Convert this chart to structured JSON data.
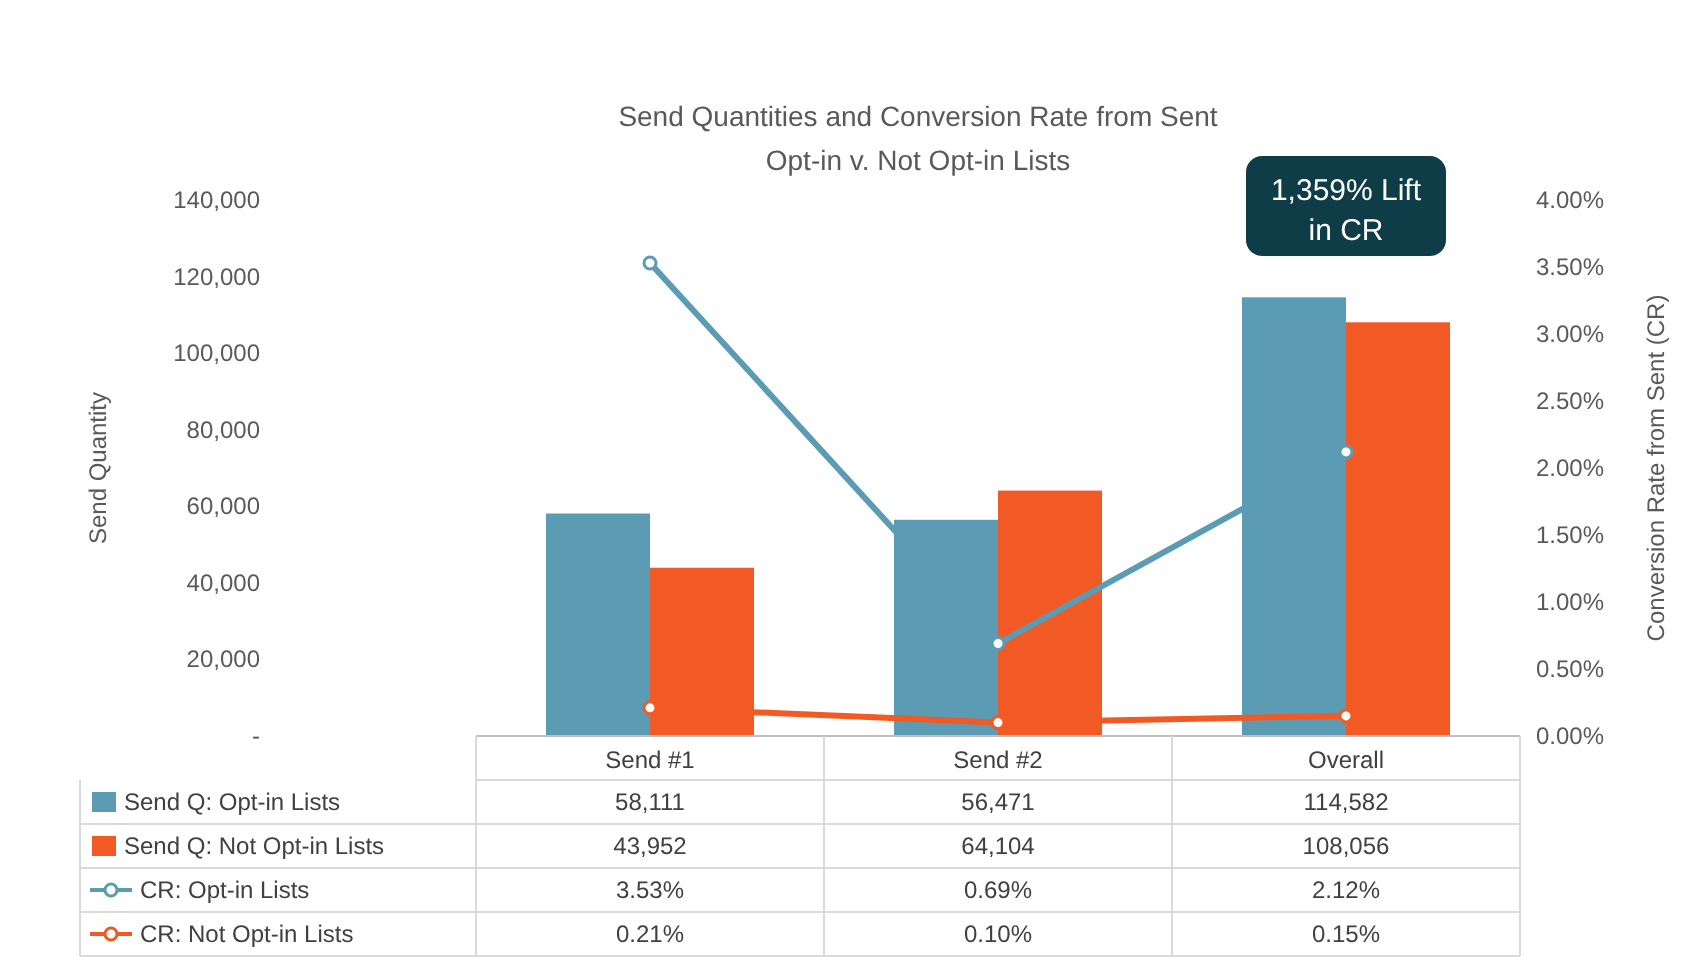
{
  "chart_data": {
    "type": "bar",
    "title": "Send Quantities and Conversion Rate from Sent",
    "subtitle": "Opt-in v. Not Opt-in Lists",
    "ylabel": "Send Quantity",
    "y2label": "Conversion Rate from Sent (CR)",
    "categories": [
      "Send #1",
      "Send #2",
      "Overall"
    ],
    "series": [
      {
        "name": "Send Q: Opt-in Lists",
        "color": "#5b9bb3",
        "values": [
          58111,
          56471,
          114582
        ],
        "value_labels": [
          "58,111",
          "56,471",
          "114,582"
        ]
      },
      {
        "name": "Send Q: Not Opt-in Lists",
        "color": "#f15a24",
        "values": [
          43952,
          64104,
          108056
        ],
        "value_labels": [
          "43,952",
          "64,104",
          "108,056"
        ]
      },
      {
        "name": "CR: Opt-in Lists",
        "type": "line",
        "axis": "y2",
        "color": "#5b9bb3",
        "values": [
          3.53,
          0.69,
          2.12
        ],
        "value_labels": [
          "3.53%",
          "0.69%",
          "2.12%"
        ]
      },
      {
        "name": "CR: Not Opt-in Lists",
        "type": "line",
        "axis": "y2",
        "color": "#f15a24",
        "values": [
          0.21,
          0.1,
          0.15
        ],
        "value_labels": [
          "0.21%",
          "0.10%",
          "0.15%"
        ]
      }
    ],
    "ylim": [
      0,
      140000
    ],
    "yticks": [
      {
        "value": 0,
        "label": "-"
      },
      {
        "value": 20000,
        "label": "20,000"
      },
      {
        "value": 40000,
        "label": "40,000"
      },
      {
        "value": 60000,
        "label": "60,000"
      },
      {
        "value": 80000,
        "label": "80,000"
      },
      {
        "value": 100000,
        "label": "100,000"
      },
      {
        "value": 120000,
        "label": "120,000"
      },
      {
        "value": 140000,
        "label": "140,000"
      }
    ],
    "y2lim": [
      0,
      4
    ],
    "y2ticks": [
      {
        "value": 0,
        "label": "0.00%"
      },
      {
        "value": 0.5,
        "label": "0.50%"
      },
      {
        "value": 1,
        "label": "1.00%"
      },
      {
        "value": 1.5,
        "label": "1.50%"
      },
      {
        "value": 2,
        "label": "2.00%"
      },
      {
        "value": 2.5,
        "label": "2.50%"
      },
      {
        "value": 3,
        "label": "3.00%"
      },
      {
        "value": 3.5,
        "label": "3.50%"
      },
      {
        "value": 4,
        "label": "4.00%"
      }
    ],
    "marker": "circle",
    "legend": "bottom",
    "annotations": [
      "1,359% Lift in CR"
    ]
  }
}
